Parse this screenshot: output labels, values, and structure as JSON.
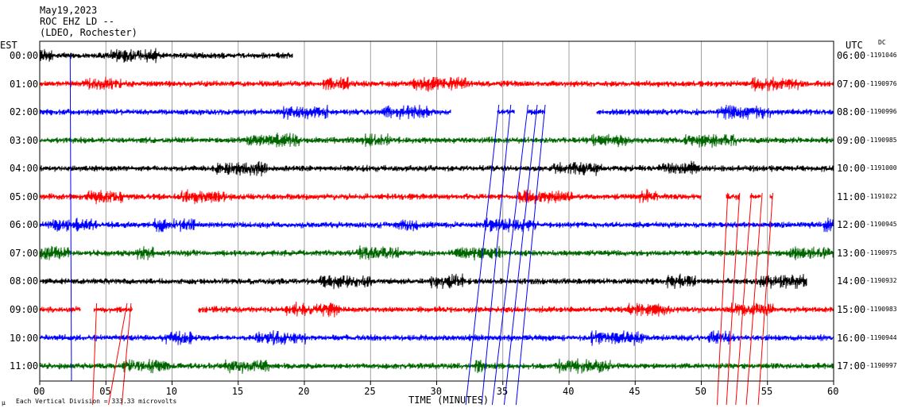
{
  "header": {
    "date": "May19,2023",
    "station": "ROC EHZ LD --",
    "network": "(LDEO, Rochester)"
  },
  "labels": {
    "left_tz": "EST",
    "right_tz": "UTC",
    "dc": "DC",
    "footer": "Each Vertical Division = 333.33 microvolts",
    "footer_mark": "μ"
  },
  "chart_data": {
    "type": "line",
    "title": "May19,2023",
    "xlabel": "TIME (MINUTES)",
    "ylabel": "",
    "xlim": [
      0,
      60
    ],
    "x_ticks": [
      "00",
      "05",
      "10",
      "15",
      "20",
      "25",
      "30",
      "35",
      "40",
      "45",
      "50",
      "55",
      "60"
    ],
    "row_colors": [
      "#000000",
      "#ff0000",
      "#0000ff",
      "#006600"
    ],
    "series": [
      {
        "est": "00:00",
        "utc": "06:00",
        "dc": "-1191046",
        "color": "#000000",
        "segments": [
          [
            0,
            19.1
          ]
        ]
      },
      {
        "est": "01:00",
        "utc": "07:00",
        "dc": "-1190976",
        "color": "#ff0000",
        "segments": [
          [
            0,
            60
          ]
        ]
      },
      {
        "est": "02:00",
        "utc": "08:00",
        "dc": "-1190996",
        "color": "#0000ff",
        "segments": [
          [
            0,
            31.1
          ],
          [
            34.6,
            35.9
          ],
          [
            36.9,
            38.2
          ],
          [
            42.1,
            60
          ]
        ]
      },
      {
        "est": "03:00",
        "utc": "09:00",
        "dc": "-1190985",
        "color": "#006600",
        "segments": [
          [
            0,
            60
          ]
        ]
      },
      {
        "est": "04:00",
        "utc": "10:00",
        "dc": "-1191000",
        "color": "#000000",
        "segments": [
          [
            0,
            60
          ]
        ]
      },
      {
        "est": "05:00",
        "utc": "11:00",
        "dc": "-1191022",
        "color": "#ff0000",
        "segments": [
          [
            0,
            50
          ],
          [
            51.9,
            52.9
          ],
          [
            53.7,
            54.5
          ],
          [
            55.2,
            55.4
          ]
        ]
      },
      {
        "est": "06:00",
        "utc": "12:00",
        "dc": "-1190945",
        "color": "#0000ff",
        "segments": [
          [
            0,
            60
          ]
        ]
      },
      {
        "est": "07:00",
        "utc": "13:00",
        "dc": "-1190975",
        "color": "#006600",
        "segments": [
          [
            0,
            60
          ]
        ]
      },
      {
        "est": "08:00",
        "utc": "14:00",
        "dc": "-1190932",
        "color": "#000000",
        "segments": [
          [
            0,
            58
          ]
        ]
      },
      {
        "est": "09:00",
        "utc": "15:00",
        "dc": "-1190983",
        "color": "#ff0000",
        "segments": [
          [
            0,
            3.1
          ],
          [
            4.1,
            7
          ],
          [
            12,
            60
          ]
        ]
      },
      {
        "est": "10:00",
        "utc": "16:00",
        "dc": "-1190944",
        "color": "#0000ff",
        "segments": [
          [
            0,
            60
          ]
        ]
      },
      {
        "est": "11:00",
        "utc": "17:00",
        "dc": "-1190997",
        "color": "#006600",
        "segments": [
          [
            0,
            60
          ]
        ]
      }
    ]
  }
}
